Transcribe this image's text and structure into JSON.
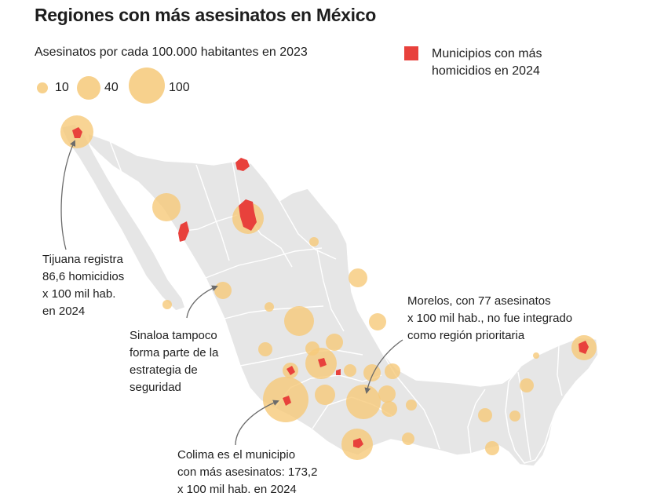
{
  "title": "Regiones con más asesinatos en México",
  "legend": {
    "rate_title": "Asesinatos por cada 100.000 habitantes en 2023",
    "sizes": [
      {
        "label": "10",
        "value": 10
      },
      {
        "label": "40",
        "value": 40
      },
      {
        "label": "100",
        "value": 100
      }
    ],
    "municipios_label": "Municipios con más homicidios en 2024"
  },
  "annotations": {
    "tijuana": [
      "Tijuana registra",
      "86,6 homicidios",
      "x 100 mil hab.",
      "en 2024"
    ],
    "sinaloa": [
      "Sinaloa tampoco",
      "forma parte de la",
      "estrategia de",
      "seguridad"
    ],
    "morelos": [
      "Morelos, con 77 asesinatos",
      "x 100 mil hab., no fue integrado",
      "como región prioritaria"
    ],
    "colima": [
      "Colima es el municipio",
      "con más asesinatos: 173,2",
      "x 100 mil hab. en 2024"
    ]
  },
  "colors": {
    "land": "#e6e6e6",
    "border": "#ffffff",
    "bubble": "#f6c979",
    "municipio": "#e8413c"
  }
}
